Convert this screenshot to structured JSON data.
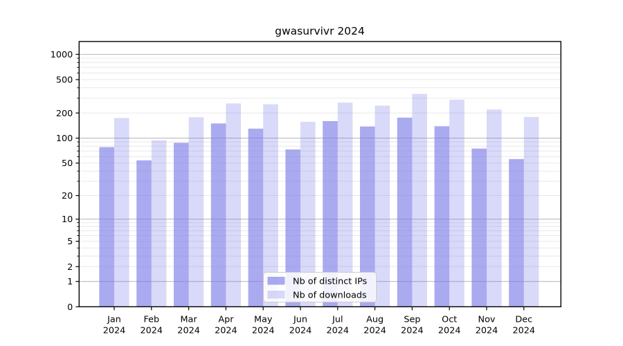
{
  "chart_data": {
    "type": "bar",
    "title": "gwasurvivr 2024",
    "categories": [
      {
        "month": "Jan",
        "year": "2024"
      },
      {
        "month": "Feb",
        "year": "2024"
      },
      {
        "month": "Mar",
        "year": "2024"
      },
      {
        "month": "Apr",
        "year": "2024"
      },
      {
        "month": "May",
        "year": "2024"
      },
      {
        "month": "Jun",
        "year": "2024"
      },
      {
        "month": "Jul",
        "year": "2024"
      },
      {
        "month": "Aug",
        "year": "2024"
      },
      {
        "month": "Sep",
        "year": "2024"
      },
      {
        "month": "Oct",
        "year": "2024"
      },
      {
        "month": "Nov",
        "year": "2024"
      },
      {
        "month": "Dec",
        "year": "2024"
      }
    ],
    "series": [
      {
        "name": "Nb of distinct IPs",
        "fill": "#7878e8",
        "fill_opacity": 0.63,
        "values": [
          78,
          54,
          88,
          150,
          130,
          73,
          160,
          138,
          176,
          139,
          75,
          56
        ]
      },
      {
        "name": "Nb of downloads",
        "fill": "#7878e8",
        "fill_opacity": 0.28,
        "values": [
          174,
          94,
          178,
          260,
          254,
          157,
          266,
          245,
          338,
          288,
          220,
          179
        ]
      }
    ],
    "yscale": "log1p",
    "ylim": [
      0,
      1420
    ],
    "y_ticks": [
      0,
      1,
      2,
      5,
      10,
      20,
      50,
      100,
      200,
      500,
      1000
    ],
    "y_tick_labels": [
      "0",
      "1",
      "2",
      "5",
      "10",
      "20",
      "50",
      "100",
      "200",
      "500",
      "1000"
    ],
    "y_major_gridlines": [
      1,
      10,
      100,
      1000
    ],
    "grid": true,
    "legend_position": "lower center",
    "colors": {
      "bar_dark_apparent": "#a9a9f1",
      "bar_light_apparent": "#d9d9f9",
      "grid_major": "#bbbbbb",
      "grid_minor": "#e8e8e8",
      "axis": "#000000",
      "text": "#000000",
      "legend_border": "#cccccc",
      "legend_bg": "#ffffff"
    }
  }
}
